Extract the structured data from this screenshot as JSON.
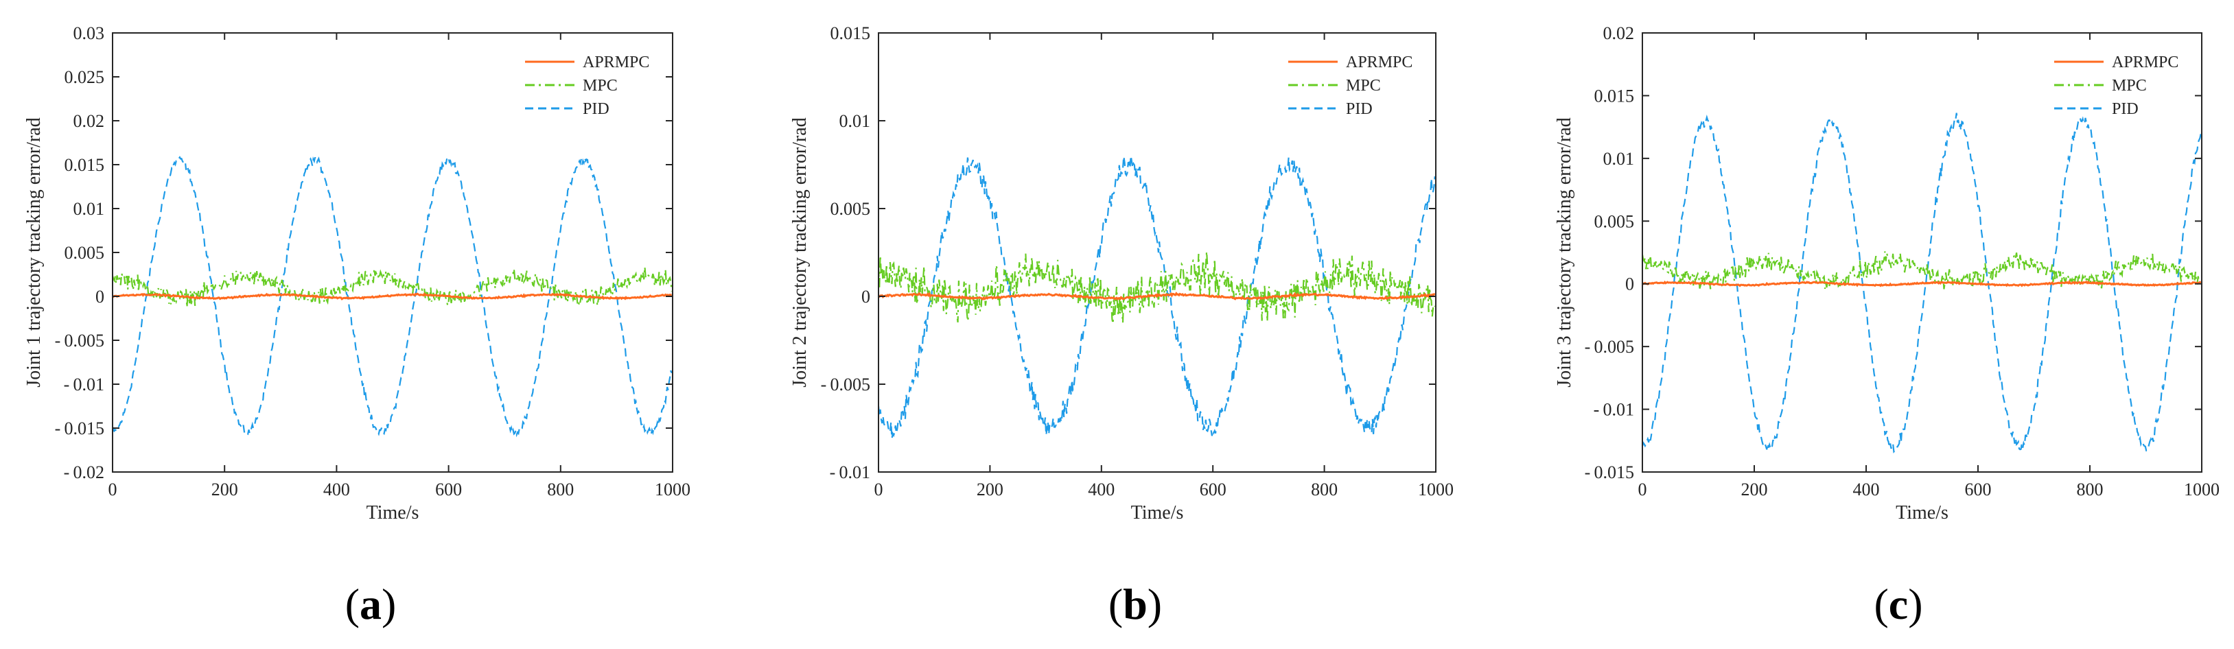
{
  "chart_data": [
    {
      "type": "line",
      "title": "",
      "caption": "(a)",
      "caption_letter": "a",
      "xlabel": "Time/s",
      "ylabel": "Joint 1 trajectory tracking error/rad",
      "xlim": [
        0,
        1000
      ],
      "ylim": [
        -0.02,
        0.03
      ],
      "xticks": [
        "0",
        "200",
        "400",
        "600",
        "800",
        "1000"
      ],
      "yticks": [
        "-0.02",
        "-0.015",
        "-0.01",
        "-0.005",
        "0",
        "0.005",
        "0.01",
        "0.015",
        "0.02",
        "0.025",
        "0.03"
      ],
      "legend": [
        "APRMPC",
        "MPC",
        "PID"
      ],
      "legend_position": "top-right",
      "series": [
        {
          "name": "APRMPC",
          "color": "#ff6a1f",
          "style": "solid",
          "description": "near-zero error",
          "amplitude": 0.0002,
          "offset": 0.0,
          "noise": 0.00012
        },
        {
          "name": "MPC",
          "color": "#66cc22",
          "style": "dash-dot",
          "amplitude": 0.0012,
          "offset": 0.001,
          "noise": 0.0014,
          "period": 240,
          "phase_deg": 90
        },
        {
          "name": "PID",
          "color": "#1e9be8",
          "style": "dashed",
          "amplitude": 0.0155,
          "offset": 0.0,
          "noise": 0.0007,
          "period": 240,
          "phase_deg": -90
        }
      ]
    },
    {
      "type": "line",
      "title": "",
      "caption": "(b)",
      "caption_letter": "b",
      "xlabel": "Time/s",
      "ylabel": "Joint 2 trajectory tracking error/rad",
      "xlim": [
        0,
        1000
      ],
      "ylim": [
        -0.01,
        0.015
      ],
      "xticks": [
        "0",
        "200",
        "400",
        "600",
        "800",
        "1000"
      ],
      "yticks": [
        "-0.01",
        "-0.005",
        "0",
        "0.005",
        "0.01",
        "0.015"
      ],
      "legend": [
        "APRMPC",
        "MPC",
        "PID"
      ],
      "legend_position": "top-right",
      "series": [
        {
          "name": "APRMPC",
          "color": "#ff6a1f",
          "style": "solid",
          "amplitude": 0.0001,
          "offset": 0.0,
          "noise": 8e-05
        },
        {
          "name": "MPC",
          "color": "#66cc22",
          "style": "dash-dot",
          "amplitude": 0.0008,
          "offset": 0.0005,
          "noise": 0.0016,
          "period": 285,
          "phase_deg": 90
        },
        {
          "name": "PID",
          "color": "#1e9be8",
          "style": "dashed",
          "amplitude": 0.0075,
          "offset": 0.0,
          "noise": 0.0009,
          "period": 285,
          "phase_deg": -120
        }
      ]
    },
    {
      "type": "line",
      "title": "",
      "caption": "(c)",
      "caption_letter": "c",
      "xlabel": "Time/s",
      "ylabel": "Joint 3 trajectory tracking error/rad",
      "xlim": [
        0,
        1000
      ],
      "ylim": [
        -0.015,
        0.02
      ],
      "xticks": [
        "0",
        "200",
        "400",
        "600",
        "800",
        "1000"
      ],
      "yticks": [
        "-0.015",
        "-0.01",
        "-0.005",
        "0",
        "0.005",
        "0.01",
        "0.015",
        "0.02"
      ],
      "legend": [
        "APRMPC",
        "MPC",
        "PID"
      ],
      "legend_position": "top-right",
      "series": [
        {
          "name": "APRMPC",
          "color": "#ff6a1f",
          "style": "solid",
          "amplitude": 0.0001,
          "offset": 0.0,
          "noise": 8e-05
        },
        {
          "name": "MPC",
          "color": "#66cc22",
          "style": "dash-dot",
          "amplitude": 0.0007,
          "offset": 0.001,
          "noise": 0.0011,
          "period": 225,
          "phase_deg": 90
        },
        {
          "name": "PID",
          "color": "#1e9be8",
          "style": "dashed",
          "amplitude": 0.013,
          "offset": 0.0,
          "noise": 0.0007,
          "period": 225,
          "phase_deg": -90
        }
      ]
    }
  ]
}
